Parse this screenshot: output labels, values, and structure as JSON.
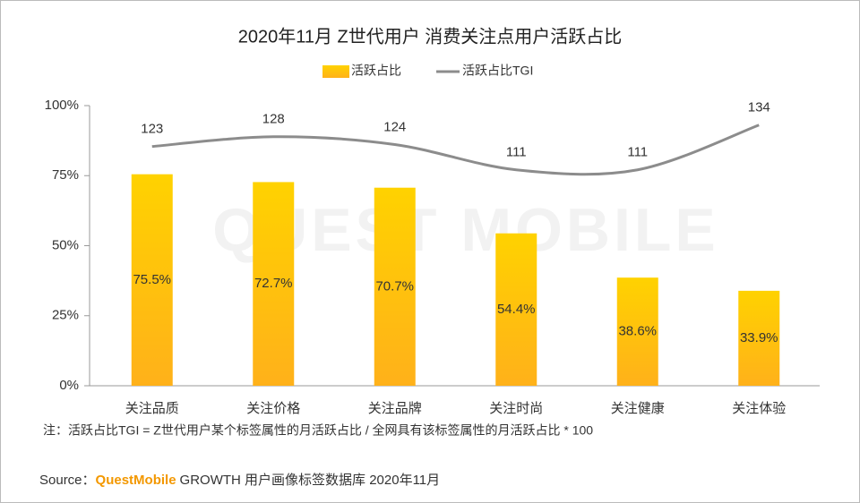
{
  "chart_data": {
    "type": "bar",
    "title": "2020年11月 Z世代用户 消费关注点用户活跃占比",
    "watermark": "QUEST MOBILE",
    "categories": [
      "关注品质",
      "关注价格",
      "关注品牌",
      "关注时尚",
      "关注健康",
      "关注体验"
    ],
    "series": [
      {
        "name": "活跃占比",
        "type": "bar",
        "color": "#FFC000",
        "values": [
          75.5,
          72.7,
          70.7,
          54.4,
          38.6,
          33.9
        ],
        "value_labels": [
          "75.5%",
          "72.7%",
          "70.7%",
          "54.4%",
          "38.6%",
          "33.9%"
        ]
      },
      {
        "name": "活跃占比TGI",
        "type": "line",
        "axis": "y2",
        "color": "#8c8c8c",
        "values": [
          123,
          128,
          124,
          111,
          111,
          134
        ]
      }
    ],
    "ylim": [
      0,
      100
    ],
    "yticks": [
      {
        "value": 0,
        "label": "0%"
      },
      {
        "value": 25,
        "label": "25%"
      },
      {
        "value": 50,
        "label": "50%"
      },
      {
        "value": 75,
        "label": "75%"
      },
      {
        "value": 100,
        "label": "100%"
      }
    ],
    "y2lim": [
      0,
      144
    ],
    "legend": "top",
    "note": "注：活跃占比TGI = Z世代用户某个标签属性的月活跃占比 / 全网具有该标签属性的月活跃占比 * 100",
    "source": {
      "prefix": "Source：",
      "brand": "QuestMobile",
      "text": "GROWTH 用户画像标签数据库 2020年11月"
    }
  }
}
